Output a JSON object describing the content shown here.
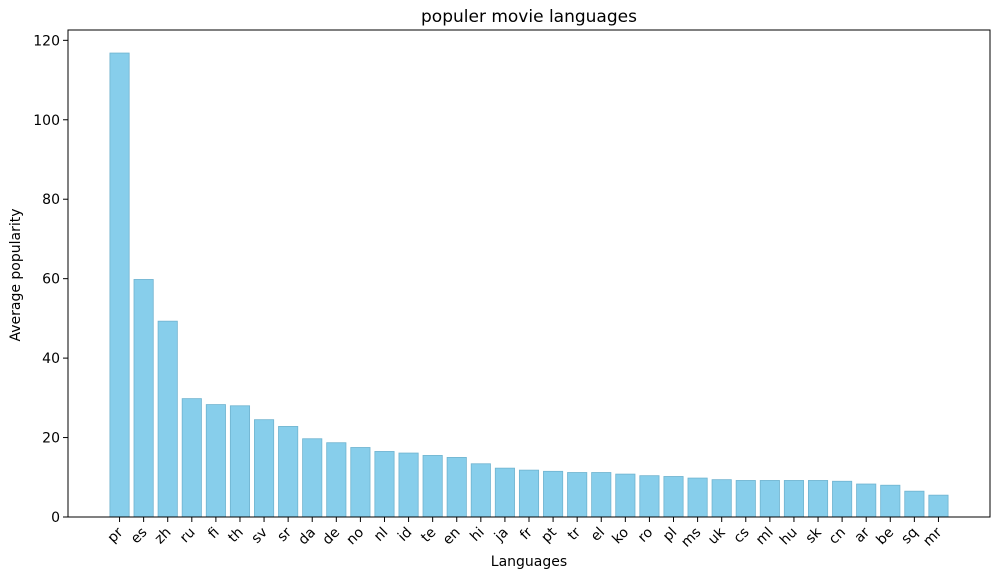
{
  "chart_data": {
    "type": "bar",
    "title": "populer movie languages",
    "x_label": "Languages",
    "y_label": "Average popularity",
    "categories": [
      "pr",
      "es",
      "zh",
      "ru",
      "fi",
      "th",
      "sv",
      "sr",
      "da",
      "de",
      "no",
      "nl",
      "id",
      "te",
      "en",
      "hi",
      "ja",
      "fr",
      "pt",
      "tr",
      "el",
      "ko",
      "ro",
      "pl",
      "ms",
      "uk",
      "cs",
      "ml",
      "hu",
      "sk",
      "cn",
      "ar",
      "be",
      "sq",
      "mr"
    ],
    "values": [
      116.8,
      59.8,
      49.3,
      29.8,
      28.3,
      28.0,
      24.5,
      22.8,
      19.7,
      18.7,
      17.5,
      16.5,
      16.1,
      15.5,
      15.0,
      13.4,
      12.3,
      11.8,
      11.5,
      11.2,
      11.2,
      10.8,
      10.4,
      10.2,
      9.8,
      9.4,
      9.2,
      9.2,
      9.2,
      9.2,
      9.0,
      8.3,
      8.0,
      6.5,
      5.5
    ],
    "color": "#87ceeb",
    "ylim": [
      0,
      122.6
    ],
    "yticks": [
      0,
      20,
      40,
      60,
      80,
      100,
      120
    ]
  }
}
